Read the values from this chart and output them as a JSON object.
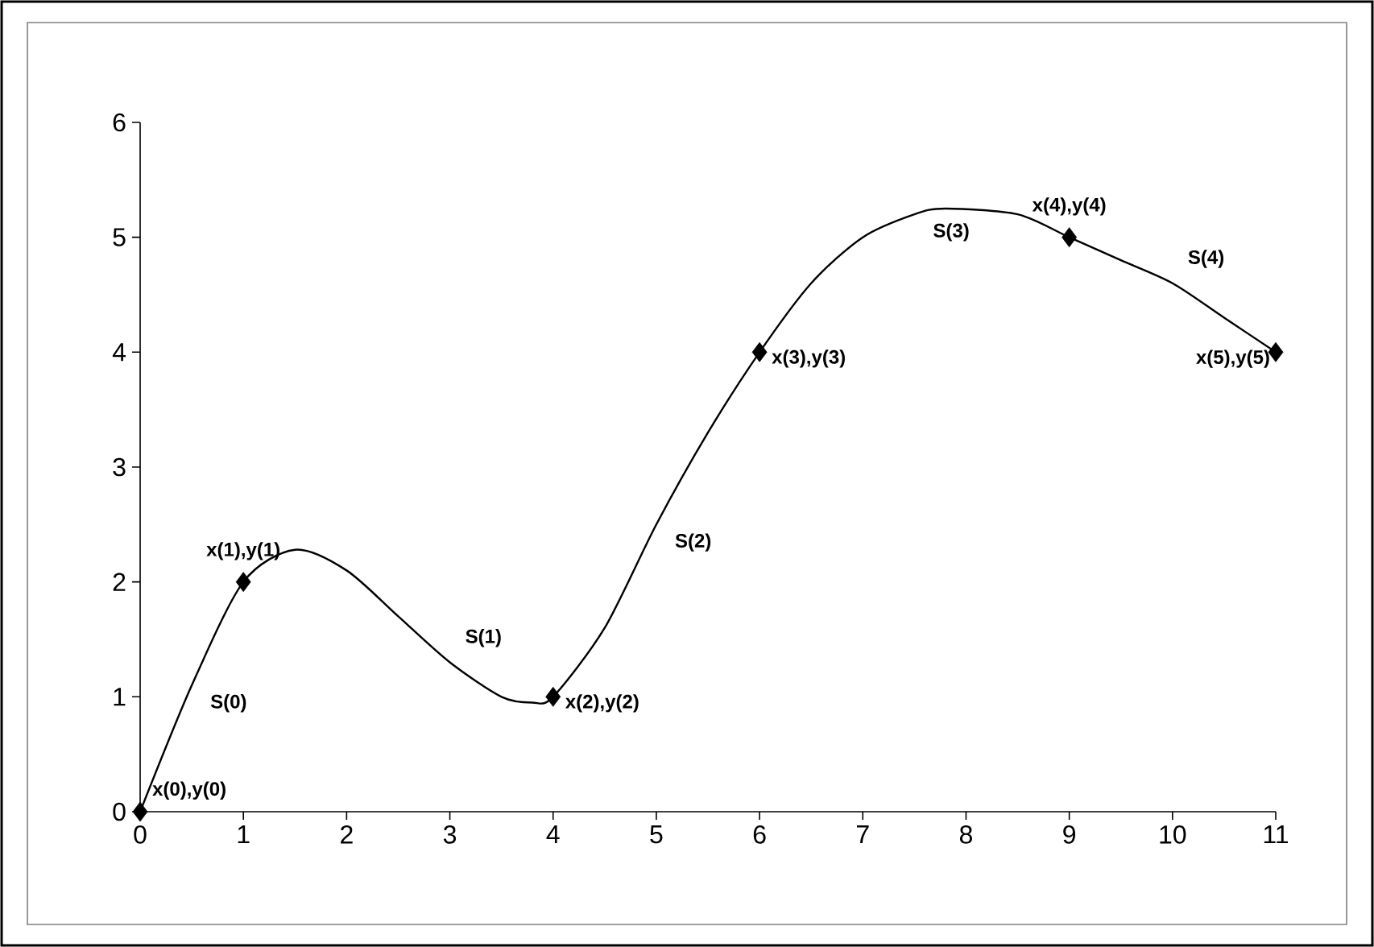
{
  "chart_data": {
    "type": "line",
    "xlim": [
      0,
      11
    ],
    "ylim": [
      0,
      6
    ],
    "xticks": [
      0,
      1,
      2,
      3,
      4,
      5,
      6,
      7,
      8,
      9,
      10,
      11
    ],
    "yticks": [
      0,
      1,
      2,
      3,
      4,
      5,
      6
    ],
    "grid": false,
    "series": [
      {
        "type": "line",
        "color": "#000000",
        "marker": "none",
        "line_style": "solid",
        "x": [
          0,
          0.5,
          1,
          1.5,
          2,
          2.5,
          3,
          3.5,
          3.8,
          4,
          4.5,
          5,
          5.5,
          6,
          6.5,
          7,
          7.5,
          7.8,
          8.5,
          9,
          9.5,
          10,
          10.5,
          11
        ],
        "values": [
          0,
          1.1,
          2,
          2.28,
          2.1,
          1.7,
          1.3,
          1.0,
          0.95,
          1,
          1.6,
          2.5,
          3.3,
          4,
          4.6,
          5.0,
          5.2,
          5.25,
          5.2,
          5,
          4.8,
          4.6,
          4.3,
          4
        ]
      },
      {
        "type": "scatter",
        "color": "#000000",
        "marker": "diamond",
        "x": [
          0,
          1,
          4,
          6,
          9,
          11
        ],
        "values": [
          0,
          2,
          1,
          4,
          5,
          4
        ]
      }
    ],
    "annotations": [
      {
        "text": "x(0),y(0)",
        "x": 0,
        "y": 0
      },
      {
        "text": "x(1),y(1)",
        "x": 1,
        "y": 2
      },
      {
        "text": "x(2),y(2)",
        "x": 4,
        "y": 1
      },
      {
        "text": "x(3),y(3)",
        "x": 6,
        "y": 4
      },
      {
        "text": "x(4),y(4)",
        "x": 9,
        "y": 5
      },
      {
        "text": "x(5),y(5)",
        "x": 11,
        "y": 4
      },
      "S(0)",
      "S(1)",
      "S(2)",
      "S(3)",
      "S(4)"
    ]
  }
}
